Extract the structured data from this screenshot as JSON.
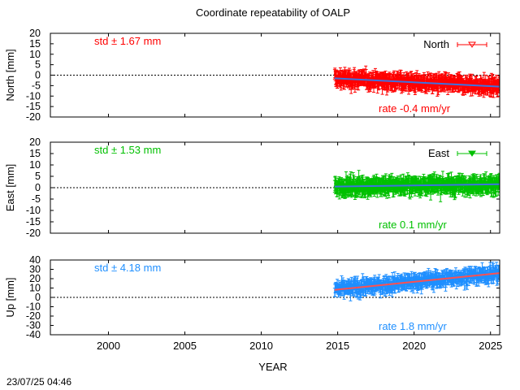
{
  "chart_data": {
    "type": "scatter",
    "title": "Coordinate repeatability of OALP",
    "xlabel": "YEAR",
    "xlim": [
      1996.2,
      2025.6
    ],
    "xticks": [
      2000,
      2005,
      2010,
      2015,
      2020,
      2025
    ],
    "timestamp": "23/07/25 04:46",
    "panels": [
      {
        "id": "north",
        "ylabel": "North [mm]",
        "ylim": [
          -20,
          20
        ],
        "yticks": [
          20,
          15,
          10,
          5,
          0,
          -5,
          -10,
          -15,
          -20
        ],
        "std_label": "std ± 1.67 mm",
        "rate_label": "rate -0.4 mm/yr",
        "legend": "North",
        "color": "#ff0000",
        "trend_color": "#3d72e0",
        "start_year": 2014.8,
        "end_year": 2025.6,
        "start_value": -1.5,
        "end_value": -5.5,
        "scatter_sd": 2.0,
        "error_bar": 2.5
      },
      {
        "id": "east",
        "ylabel": "East [mm]",
        "ylim": [
          -20,
          20
        ],
        "yticks": [
          20,
          15,
          10,
          5,
          0,
          -5,
          -10,
          -15,
          -20
        ],
        "std_label": "std ± 1.53 mm",
        "rate_label": "rate  0.1 mm/yr",
        "legend": "East",
        "color": "#00c000",
        "trend_color": "#3d72e0",
        "start_year": 2014.8,
        "end_year": 2025.6,
        "start_value": 0.5,
        "end_value": 1.5,
        "scatter_sd": 1.9,
        "error_bar": 2.5
      },
      {
        "id": "up",
        "ylabel": "Up [mm]",
        "ylim": [
          -40,
          40
        ],
        "yticks": [
          40,
          30,
          20,
          10,
          0,
          -10,
          -20,
          -30,
          -40
        ],
        "std_label": "std ± 4.18 mm",
        "rate_label": "rate  1.8 mm/yr",
        "legend": "",
        "color": "#1f8fff",
        "trend_color": "#ff5050",
        "start_year": 2014.8,
        "end_year": 2025.6,
        "start_value": 8,
        "end_value": 26,
        "scatter_sd": 4.5,
        "error_bar": 5
      }
    ]
  }
}
